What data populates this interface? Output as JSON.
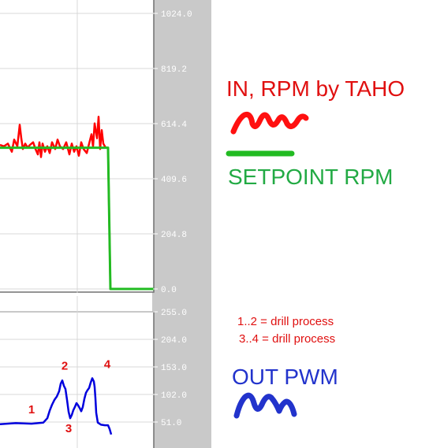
{
  "colors": {
    "panel_bg": "#c9c9c9",
    "plot_bg": "#ffffff",
    "grid": "#d8d8d8",
    "in_rpm": "#ff0000",
    "setpoint": "#22bb22",
    "setpoint_drop": "#44dd44",
    "out_pwm": "#0000dd",
    "text_red": "#e01010",
    "text_green": "#22aa44",
    "text_blue": "#2233cc"
  },
  "annotations": {
    "in_rpm": "IN, RPM by TAHO",
    "setpoint": "SETPOINT RPM",
    "out_pwm": "OUT PWM",
    "note1": "1..2  = drill process",
    "note2": "3..4  = drill process"
  },
  "chart_data": [
    {
      "type": "line",
      "y_ticks": [
        "1024.0",
        "819.2",
        "614.4",
        "409.6",
        "204.8",
        "0.0"
      ],
      "ylim": [
        0,
        1024
      ],
      "xlim": [
        0,
        195
      ],
      "grid": true,
      "series": [
        {
          "color": "#ff0000",
          "points": [
            [
              0,
              535
            ],
            [
              5,
              530
            ],
            [
              10,
              540
            ],
            [
              15,
              510
            ],
            [
              18,
              555
            ],
            [
              22,
              530
            ],
            [
              25,
              610
            ],
            [
              27,
              560
            ],
            [
              29,
              520
            ],
            [
              32,
              540
            ],
            [
              35,
              525
            ],
            [
              38,
              535
            ],
            [
              42,
              545
            ],
            [
              45,
              520
            ],
            [
              48,
              500
            ],
            [
              50,
              545
            ],
            [
              52,
              490
            ],
            [
              54,
              540
            ],
            [
              57,
              510
            ],
            [
              60,
              530
            ],
            [
              63,
              505
            ],
            [
              66,
              545
            ],
            [
              70,
              520
            ],
            [
              73,
              555
            ],
            [
              76,
              530
            ],
            [
              80,
              520
            ],
            [
              84,
              545
            ],
            [
              88,
              500
            ],
            [
              91,
              540
            ],
            [
              94,
              510
            ],
            [
              97,
              530
            ],
            [
              100,
              495
            ],
            [
              103,
              545
            ],
            [
              106,
              520
            ],
            [
              110,
              505
            ],
            [
              113,
              540
            ],
            [
              116,
              575
            ],
            [
              118,
              530
            ],
            [
              120,
              615
            ],
            [
              123,
              560
            ],
            [
              125,
              640
            ],
            [
              127,
              520
            ],
            [
              129,
              590
            ],
            [
              131,
              540
            ],
            [
              134,
              525
            ],
            [
              137,
              525
            ],
            [
              140,
              0
            ],
            [
              195,
              0
            ]
          ]
        },
        {
          "color": "#22bb22",
          "points": [
            [
              0,
              525
            ],
            [
              137,
              525
            ],
            [
              140,
              0
            ],
            [
              195,
              0
            ]
          ]
        }
      ]
    },
    {
      "type": "line",
      "y_ticks": [
        "255.0",
        "204.0",
        "153.0",
        "102.0",
        "51.0"
      ],
      "ylim": [
        0,
        255
      ],
      "xlim": [
        0,
        195
      ],
      "grid": true,
      "series": [
        {
          "color": "#0000dd",
          "points": [
            [
              0,
              47
            ],
            [
              20,
              49
            ],
            [
              40,
              48
            ],
            [
              55,
              50
            ],
            [
              60,
              58
            ],
            [
              63,
              72
            ],
            [
              66,
              83
            ],
            [
              69,
              92
            ],
            [
              72,
              98
            ],
            [
              75,
              108
            ],
            [
              77,
              122
            ],
            [
              79,
              128
            ],
            [
              81,
              118
            ],
            [
              83,
              112
            ],
            [
              85,
              92
            ],
            [
              87,
              70
            ],
            [
              89,
              58
            ],
            [
              91,
              64
            ],
            [
              93,
              73
            ],
            [
              95,
              79
            ],
            [
              97,
              86
            ],
            [
              99,
              82
            ],
            [
              101,
              77
            ],
            [
              103,
              71
            ],
            [
              105,
              79
            ],
            [
              107,
              94
            ],
            [
              109,
              105
            ],
            [
              111,
              110
            ],
            [
              113,
              114
            ],
            [
              115,
              124
            ],
            [
              117,
              132
            ],
            [
              119,
              126
            ],
            [
              120,
              116
            ],
            [
              121,
              95
            ],
            [
              122,
              68
            ],
            [
              124,
              50
            ],
            [
              128,
              46
            ],
            [
              133,
              45
            ],
            [
              137,
              45
            ],
            [
              139,
              38
            ],
            [
              141,
              28
            ]
          ]
        }
      ],
      "markers": [
        {
          "label": "1",
          "x": 40,
          "y": 67
        },
        {
          "label": "2",
          "x": 82,
          "y": 148
        },
        {
          "label": "3",
          "x": 87,
          "y": 32
        },
        {
          "label": "4",
          "x": 136,
          "y": 151
        }
      ]
    }
  ]
}
